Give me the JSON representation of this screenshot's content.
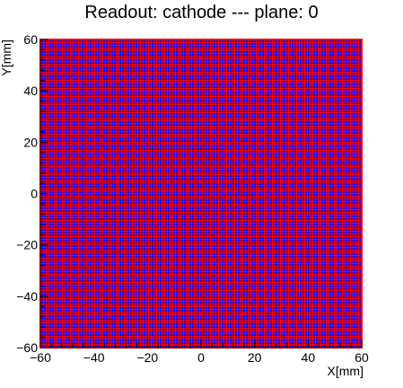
{
  "chart_data": {
    "type": "heatmap",
    "title": "Readout: cathode --- plane: 0",
    "xlabel": "X[mm]",
    "ylabel": "Y[mm]",
    "xlim": [
      -60,
      60
    ],
    "ylim": [
      -60,
      60
    ],
    "x_ticks": [
      -60,
      -40,
      -20,
      0,
      20,
      40,
      60
    ],
    "y_ticks": [
      -60,
      -40,
      -20,
      0,
      20,
      40,
      60
    ],
    "x_tick_labels": [
      "−60",
      "−40",
      "−20",
      "0",
      "20",
      "40",
      "60"
    ],
    "y_tick_labels": [
      "−60",
      "−40",
      "−20",
      "0",
      "20",
      "40",
      "60"
    ],
    "pixel_pitch_mm": 1,
    "colors": {
      "pixel_x_strips": "#ff0000",
      "pixel_y_strips": "#0000ff",
      "frame": "#ff0000",
      "axis": "#000000"
    }
  }
}
